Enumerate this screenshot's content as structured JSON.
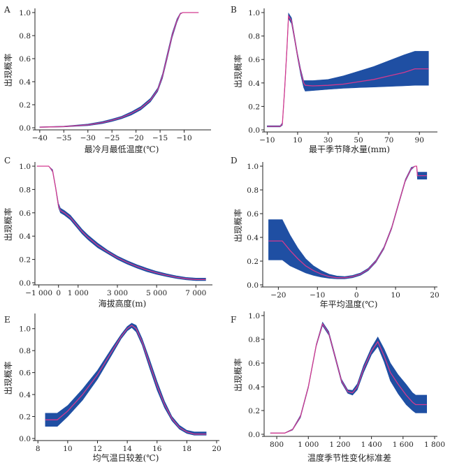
{
  "chart_data": [
    {
      "id": "A",
      "type": "line",
      "panel_label": "A",
      "xlabel": "最冷月最低温度(℃)",
      "ylabel": "出现概率",
      "xlim": [
        -41,
        -5
      ],
      "ylim": [
        0,
        1.0
      ],
      "xticks": [
        -40,
        -35,
        -30,
        -25,
        -20,
        -15,
        -10
      ],
      "xtick_labels": [
        "−40",
        "−35",
        "−30",
        "−25",
        "−20",
        "−15",
        "−10"
      ],
      "yticks": [
        0,
        0.2,
        0.4,
        0.6,
        0.8,
        1.0
      ],
      "ytick_labels": [
        "0.0",
        "0.2",
        "0.4",
        "0.6",
        "0.8",
        "1.0"
      ],
      "series": [
        {
          "name": "mean",
          "x": [
            -40,
            -35,
            -30,
            -27,
            -25,
            -23,
            -21,
            -19,
            -17,
            -15.5,
            -14.5,
            -13.5,
            -12.5,
            -11.5,
            -10.8,
            -10.3,
            -9,
            -7
          ],
          "y": [
            0.005,
            0.01,
            0.025,
            0.045,
            0.065,
            0.09,
            0.125,
            0.17,
            0.24,
            0.33,
            0.45,
            0.62,
            0.8,
            0.93,
            0.99,
            1.0,
            1.0,
            1.0
          ]
        },
        {
          "name": "upper",
          "x": [
            -40,
            -35,
            -30,
            -27,
            -25,
            -23,
            -21,
            -19,
            -17,
            -15.5,
            -14.5,
            -13.5,
            -12.5,
            -11.5,
            -10.8,
            -10.3,
            -9,
            -7
          ],
          "y": [
            0.008,
            0.014,
            0.032,
            0.054,
            0.075,
            0.1,
            0.138,
            0.185,
            0.255,
            0.345,
            0.47,
            0.645,
            0.82,
            0.945,
            0.995,
            1.0,
            1.0,
            1.0
          ]
        },
        {
          "name": "lower",
          "x": [
            -40,
            -35,
            -30,
            -27,
            -25,
            -23,
            -21,
            -19,
            -17,
            -15.5,
            -14.5,
            -13.5,
            -12.5,
            -11.5,
            -10.8,
            -10.3,
            -9,
            -7
          ],
          "y": [
            0.003,
            0.007,
            0.018,
            0.036,
            0.055,
            0.078,
            0.11,
            0.155,
            0.225,
            0.315,
            0.43,
            0.6,
            0.78,
            0.915,
            0.985,
            1.0,
            1.0,
            1.0
          ]
        }
      ]
    },
    {
      "id": "B",
      "type": "line",
      "panel_label": "B",
      "xlabel": "最干季节降水量(mm)",
      "ylabel": "出现概率",
      "xlim": [
        -12,
        100
      ],
      "ylim": [
        0,
        1.0
      ],
      "xticks": [
        -10,
        10,
        30,
        50,
        70,
        90
      ],
      "xtick_labels": [
        "−10",
        "10",
        "30",
        "50",
        "70",
        "90"
      ],
      "yticks": [
        0,
        0.2,
        0.4,
        0.6,
        0.8,
        1.0
      ],
      "ytick_labels": [
        "0.0",
        "0.2",
        "0.4",
        "0.6",
        "0.8",
        "1.0"
      ],
      "series": [
        {
          "name": "mean",
          "x": [
            -10,
            -1.5,
            0,
            1.5,
            3,
            4,
            6,
            8,
            10,
            12,
            14,
            15,
            20,
            30,
            40,
            50,
            60,
            70,
            80,
            87,
            96
          ],
          "y": [
            0.03,
            0.03,
            0.05,
            0.35,
            0.7,
            0.97,
            0.93,
            0.78,
            0.63,
            0.5,
            0.4,
            0.38,
            0.375,
            0.38,
            0.39,
            0.41,
            0.43,
            0.46,
            0.49,
            0.52,
            0.52
          ]
        },
        {
          "name": "upper",
          "x": [
            -10,
            -1.5,
            0,
            1.5,
            3,
            4,
            6,
            8,
            10,
            12,
            14,
            15,
            20,
            30,
            40,
            50,
            60,
            70,
            80,
            87,
            96
          ],
          "y": [
            0.035,
            0.035,
            0.06,
            0.37,
            0.72,
            0.995,
            0.955,
            0.8,
            0.65,
            0.52,
            0.42,
            0.42,
            0.42,
            0.43,
            0.46,
            0.5,
            0.54,
            0.59,
            0.64,
            0.67,
            0.67
          ]
        },
        {
          "name": "lower",
          "x": [
            -10,
            -1.5,
            0,
            1.5,
            3,
            4,
            6,
            8,
            10,
            12,
            14,
            15,
            20,
            30,
            40,
            50,
            60,
            70,
            80,
            87,
            96
          ],
          "y": [
            0.025,
            0.025,
            0.04,
            0.33,
            0.68,
            0.95,
            0.905,
            0.76,
            0.61,
            0.47,
            0.36,
            0.33,
            0.335,
            0.345,
            0.355,
            0.36,
            0.365,
            0.37,
            0.375,
            0.38,
            0.38
          ]
        }
      ]
    },
    {
      "id": "C",
      "type": "line",
      "panel_label": "C",
      "xlabel": "海拔高度(m)",
      "ylabel": "出现概率",
      "xlim": [
        -1200,
        7700
      ],
      "ylim": [
        0,
        1.0
      ],
      "xticks": [
        -1000,
        1000,
        3000,
        5000,
        7000
      ],
      "xtick_labels": [
        "−1 000",
        "1 000",
        "3 000",
        "5 000",
        "7 000"
      ],
      "minor_xticks": [
        0
      ],
      "minor_xtick_labels": [
        "0"
      ],
      "yticks": [
        0,
        0.2,
        0.4,
        0.6,
        0.8,
        1.0
      ],
      "ytick_labels": [
        "0.0",
        "0.2",
        "0.4",
        "0.6",
        "0.8",
        "1.0"
      ],
      "series": [
        {
          "name": "mean",
          "x": [
            -1100,
            -500,
            -300,
            -150,
            0,
            100,
            300,
            600,
            900,
            1200,
            1500,
            2000,
            2500,
            3000,
            3500,
            4000,
            4500,
            5000,
            5500,
            6000,
            6500,
            7000,
            7500
          ],
          "y": [
            1.0,
            1.0,
            0.96,
            0.82,
            0.66,
            0.62,
            0.6,
            0.56,
            0.5,
            0.44,
            0.39,
            0.32,
            0.265,
            0.215,
            0.175,
            0.14,
            0.11,
            0.085,
            0.065,
            0.048,
            0.035,
            0.028,
            0.028
          ]
        },
        {
          "name": "upper",
          "x": [
            -1100,
            -500,
            -300,
            -150,
            0,
            100,
            300,
            600,
            900,
            1200,
            1500,
            2000,
            2500,
            3000,
            3500,
            4000,
            4500,
            5000,
            5500,
            6000,
            6500,
            7000,
            7500
          ],
          "y": [
            1.0,
            1.0,
            0.97,
            0.83,
            0.68,
            0.64,
            0.62,
            0.58,
            0.52,
            0.46,
            0.41,
            0.34,
            0.28,
            0.23,
            0.19,
            0.155,
            0.125,
            0.098,
            0.077,
            0.06,
            0.046,
            0.04,
            0.04
          ]
        },
        {
          "name": "lower",
          "x": [
            -1100,
            -500,
            -300,
            -150,
            0,
            100,
            300,
            600,
            900,
            1200,
            1500,
            2000,
            2500,
            3000,
            3500,
            4000,
            4500,
            5000,
            5500,
            6000,
            6500,
            7000,
            7500
          ],
          "y": [
            1.0,
            1.0,
            0.95,
            0.81,
            0.645,
            0.6,
            0.58,
            0.54,
            0.48,
            0.42,
            0.37,
            0.3,
            0.25,
            0.2,
            0.16,
            0.125,
            0.095,
            0.072,
            0.053,
            0.037,
            0.025,
            0.018,
            0.018
          ]
        }
      ]
    },
    {
      "id": "D",
      "type": "line",
      "panel_label": "D",
      "xlabel": "年平均温度(℃)",
      "ylabel": "出现概率",
      "xlim": [
        -24,
        20
      ],
      "ylim": [
        0,
        1.0
      ],
      "xticks": [
        -20,
        -10,
        0,
        10,
        20
      ],
      "xtick_labels": [
        "−20",
        "−10",
        "0",
        "10",
        "20"
      ],
      "yticks": [
        0,
        0.2,
        0.4,
        0.6,
        0.8,
        1.0
      ],
      "ytick_labels": [
        "0.0",
        "0.2",
        "0.4",
        "0.6",
        "0.8",
        "1.0"
      ],
      "series": [
        {
          "name": "mean",
          "x": [
            -22.5,
            -19,
            -17,
            -15,
            -13,
            -11,
            -9,
            -7,
            -5,
            -3,
            -1,
            1,
            3,
            5,
            7,
            9,
            11,
            12.5,
            14,
            15,
            15.4,
            15.6,
            18
          ],
          "y": [
            0.37,
            0.37,
            0.29,
            0.22,
            0.16,
            0.12,
            0.09,
            0.07,
            0.06,
            0.06,
            0.07,
            0.09,
            0.13,
            0.2,
            0.31,
            0.48,
            0.71,
            0.88,
            0.98,
            1.0,
            1.0,
            0.92,
            0.92
          ]
        },
        {
          "name": "upper",
          "x": [
            -22.5,
            -19,
            -17,
            -15,
            -13,
            -11,
            -9,
            -7,
            -5,
            -3,
            -1,
            1,
            3,
            5,
            7,
            9,
            11,
            12.5,
            14,
            15,
            15.4,
            15.6,
            18
          ],
          "y": [
            0.55,
            0.55,
            0.42,
            0.31,
            0.22,
            0.16,
            0.12,
            0.09,
            0.075,
            0.07,
            0.08,
            0.1,
            0.14,
            0.21,
            0.32,
            0.49,
            0.72,
            0.89,
            0.99,
            1.0,
            1.0,
            0.95,
            0.95
          ]
        },
        {
          "name": "lower",
          "x": [
            -22.5,
            -19,
            -17,
            -15,
            -13,
            -11,
            -9,
            -7,
            -5,
            -3,
            -1,
            1,
            3,
            5,
            7,
            9,
            11,
            12.5,
            14,
            15,
            15.4,
            15.6,
            18
          ],
          "y": [
            0.21,
            0.21,
            0.16,
            0.13,
            0.1,
            0.08,
            0.065,
            0.055,
            0.05,
            0.05,
            0.06,
            0.08,
            0.12,
            0.19,
            0.3,
            0.47,
            0.7,
            0.87,
            0.97,
            1.0,
            1.0,
            0.89,
            0.89
          ]
        }
      ]
    },
    {
      "id": "E",
      "type": "line",
      "panel_label": "E",
      "xlabel": "均气温日较差(℃)",
      "ylabel": "出现概率",
      "xlim": [
        7.8,
        20
      ],
      "ylim": [
        0,
        1.1
      ],
      "xticks": [
        8,
        10,
        12,
        14,
        16,
        18,
        20
      ],
      "xtick_labels": [
        "8",
        "10",
        "12",
        "14",
        "16",
        "18",
        "20"
      ],
      "yticks": [
        0,
        0.2,
        0.4,
        0.6,
        0.8,
        1.0
      ],
      "ytick_labels": [
        "0.0",
        "0.2",
        "0.4",
        "0.6",
        "0.8",
        "1.0"
      ],
      "series": [
        {
          "name": "mean",
          "x": [
            8.5,
            9.3,
            10,
            11,
            12,
            13,
            13.6,
            14,
            14.3,
            14.6,
            15,
            15.5,
            16,
            16.5,
            17,
            17.5,
            18,
            18.5,
            19.3
          ],
          "y": [
            0.17,
            0.17,
            0.25,
            0.4,
            0.58,
            0.8,
            0.93,
            1.0,
            1.03,
            1.0,
            0.88,
            0.68,
            0.48,
            0.31,
            0.18,
            0.1,
            0.06,
            0.04,
            0.04
          ]
        },
        {
          "name": "upper",
          "x": [
            8.5,
            9.3,
            10,
            11,
            12,
            13,
            13.6,
            14,
            14.3,
            14.6,
            15,
            15.5,
            16,
            16.5,
            17,
            17.5,
            18,
            18.5,
            19.3
          ],
          "y": [
            0.23,
            0.23,
            0.3,
            0.45,
            0.62,
            0.83,
            0.95,
            1.02,
            1.05,
            1.03,
            0.91,
            0.72,
            0.52,
            0.34,
            0.2,
            0.12,
            0.075,
            0.06,
            0.06
          ]
        },
        {
          "name": "lower",
          "x": [
            8.5,
            9.3,
            10,
            11,
            12,
            13,
            13.6,
            14,
            14.3,
            14.6,
            15,
            15.5,
            16,
            16.5,
            17,
            17.5,
            18,
            18.5,
            19.3
          ],
          "y": [
            0.11,
            0.11,
            0.2,
            0.35,
            0.54,
            0.77,
            0.91,
            0.98,
            1.01,
            0.97,
            0.85,
            0.64,
            0.44,
            0.28,
            0.16,
            0.085,
            0.045,
            0.03,
            0.03
          ]
        }
      ]
    },
    {
      "id": "F",
      "type": "line",
      "panel_label": "F",
      "xlabel": "温度季节性变化标准差",
      "ylabel": "出现概率",
      "xlim": [
        720,
        1800
      ],
      "ylim": [
        0,
        1.0
      ],
      "xticks": [
        800,
        1000,
        1200,
        1400,
        1600,
        1800
      ],
      "xtick_labels": [
        "800",
        "1 000",
        "1 200",
        "1 400",
        "1 600",
        "1 800"
      ],
      "yticks": [
        0,
        0.2,
        0.4,
        0.6,
        0.8,
        1.0
      ],
      "ytick_labels": [
        "0.0",
        "0.2",
        "0.4",
        "0.6",
        "0.8",
        "1.0"
      ],
      "series": [
        {
          "name": "mean",
          "x": [
            760,
            850,
            900,
            950,
            1000,
            1050,
            1090,
            1130,
            1170,
            1210,
            1250,
            1280,
            1310,
            1350,
            1400,
            1440,
            1480,
            1520,
            1570,
            1620,
            1660,
            1680,
            1750
          ],
          "y": [
            0.01,
            0.01,
            0.04,
            0.15,
            0.4,
            0.75,
            0.93,
            0.85,
            0.65,
            0.45,
            0.36,
            0.35,
            0.4,
            0.55,
            0.7,
            0.78,
            0.66,
            0.52,
            0.42,
            0.33,
            0.27,
            0.25,
            0.25
          ]
        },
        {
          "name": "upper",
          "x": [
            760,
            850,
            900,
            950,
            1000,
            1050,
            1090,
            1130,
            1170,
            1210,
            1250,
            1280,
            1310,
            1350,
            1400,
            1440,
            1480,
            1520,
            1570,
            1620,
            1660,
            1680,
            1750
          ],
          "y": [
            0.012,
            0.012,
            0.045,
            0.16,
            0.41,
            0.76,
            0.945,
            0.865,
            0.665,
            0.465,
            0.375,
            0.37,
            0.425,
            0.58,
            0.73,
            0.82,
            0.72,
            0.6,
            0.5,
            0.42,
            0.35,
            0.33,
            0.33
          ]
        },
        {
          "name": "lower",
          "x": [
            760,
            850,
            900,
            950,
            1000,
            1050,
            1090,
            1130,
            1170,
            1210,
            1250,
            1280,
            1310,
            1350,
            1400,
            1440,
            1480,
            1520,
            1570,
            1620,
            1660,
            1680,
            1750
          ],
          "y": [
            0.008,
            0.008,
            0.035,
            0.14,
            0.39,
            0.74,
            0.915,
            0.835,
            0.635,
            0.435,
            0.345,
            0.33,
            0.375,
            0.52,
            0.67,
            0.74,
            0.61,
            0.45,
            0.34,
            0.25,
            0.2,
            0.18,
            0.18
          ]
        }
      ]
    }
  ]
}
